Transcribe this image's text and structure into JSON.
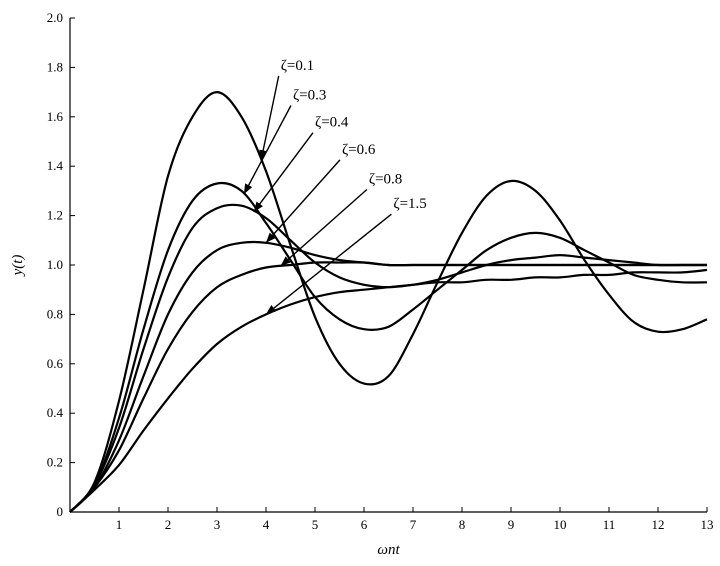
{
  "chart_data": {
    "type": "line",
    "xlabel": "ωnt",
    "ylabel": "y(t)",
    "xlim": [
      0,
      13
    ],
    "ylim": [
      0,
      2.0
    ],
    "x_ticks": [
      "1",
      "2",
      "3",
      "4",
      "5",
      "6",
      "7",
      "8",
      "9",
      "10",
      "11",
      "12",
      "13"
    ],
    "y_ticks": [
      "0",
      "0.2",
      "0.4",
      "0.6",
      "0.8",
      "1.0",
      "1.2",
      "1.4",
      "1.6",
      "1.8",
      "2.0"
    ],
    "grid": false,
    "series": [
      {
        "name": "ζ=0.1",
        "zeta": 0.1,
        "x": [
          0,
          0.5,
          1,
          1.5,
          2,
          2.5,
          3,
          3.5,
          4,
          4.5,
          5,
          5.5,
          6,
          6.5,
          7,
          7.5,
          8,
          8.5,
          9,
          9.5,
          10,
          10.5,
          11,
          11.5,
          12,
          12.5,
          13
        ],
        "y": [
          0,
          0.12,
          0.45,
          0.9,
          1.36,
          1.6,
          1.7,
          1.6,
          1.38,
          1.08,
          0.79,
          0.6,
          0.52,
          0.55,
          0.72,
          0.93,
          1.13,
          1.28,
          1.34,
          1.3,
          1.18,
          1.02,
          0.88,
          0.77,
          0.73,
          0.74,
          0.78
        ]
      },
      {
        "name": "ζ=0.3",
        "zeta": 0.3,
        "x": [
          0,
          0.5,
          1,
          1.5,
          2,
          2.5,
          3,
          3.5,
          4,
          4.5,
          5,
          5.5,
          6,
          6.5,
          7,
          7.5,
          8,
          8.5,
          9,
          9.5,
          10,
          10.5,
          11,
          11.5,
          12,
          12.5,
          13
        ],
        "y": [
          0,
          0.11,
          0.38,
          0.74,
          1.06,
          1.26,
          1.33,
          1.3,
          1.17,
          1.02,
          0.87,
          0.78,
          0.74,
          0.75,
          0.82,
          0.9,
          0.98,
          1.06,
          1.11,
          1.13,
          1.11,
          1.06,
          1.01,
          0.96,
          0.94,
          0.93,
          0.93
        ]
      },
      {
        "name": "ζ=0.4",
        "zeta": 0.4,
        "x": [
          0,
          0.5,
          1,
          1.5,
          2,
          2.5,
          3,
          3.5,
          4,
          4.5,
          5,
          5.5,
          6,
          6.5,
          7,
          7.5,
          8,
          8.5,
          9,
          9.5,
          10,
          10.5,
          11,
          11.5,
          12,
          12.5,
          13
        ],
        "y": [
          0,
          0.11,
          0.34,
          0.66,
          0.95,
          1.15,
          1.23,
          1.24,
          1.19,
          1.1,
          1.01,
          0.95,
          0.92,
          0.91,
          0.92,
          0.94,
          0.97,
          1.0,
          1.02,
          1.03,
          1.04,
          1.03,
          1.02,
          1.01,
          1.0,
          1.0,
          1.0
        ]
      },
      {
        "name": "ζ=0.6",
        "zeta": 0.6,
        "x": [
          0,
          0.5,
          1,
          1.5,
          2,
          2.5,
          3,
          3.5,
          4,
          4.5,
          5,
          5.5,
          6,
          6.5,
          7,
          7.5,
          8,
          8.5,
          9,
          9.5,
          10,
          10.5,
          11,
          11.5,
          12,
          12.5,
          13
        ],
        "y": [
          0,
          0.1,
          0.29,
          0.55,
          0.8,
          0.97,
          1.06,
          1.09,
          1.09,
          1.07,
          1.04,
          1.02,
          1.01,
          1.0,
          1.0,
          1.0,
          1.0,
          1.0,
          1.0,
          1.0,
          1.0,
          1.0,
          1.0,
          1.0,
          1.0,
          1.0,
          1.0
        ]
      },
      {
        "name": "ζ=0.8",
        "zeta": 0.8,
        "x": [
          0,
          0.5,
          1,
          1.5,
          2,
          2.5,
          3,
          3.5,
          4,
          4.5,
          5,
          5.5,
          6,
          6.5,
          7,
          7.5,
          8,
          8.5,
          9,
          9.5,
          10,
          10.5,
          11,
          11.5,
          12,
          12.5,
          13
        ],
        "y": [
          0,
          0.1,
          0.25,
          0.46,
          0.66,
          0.81,
          0.91,
          0.96,
          0.99,
          1.0,
          1.01,
          1.01,
          1.01,
          1.0,
          1.0,
          1.0,
          1.0,
          1.0,
          1.0,
          1.0,
          1.0,
          1.0,
          1.0,
          1.0,
          1.0,
          1.0,
          1.0
        ]
      },
      {
        "name": "ζ=1.5",
        "zeta": 1.5,
        "x": [
          0,
          0.5,
          1,
          1.5,
          2,
          2.5,
          3,
          3.5,
          4,
          4.5,
          5,
          5.5,
          6,
          6.5,
          7,
          7.5,
          8,
          8.5,
          9,
          9.5,
          10,
          10.5,
          11,
          11.5,
          12,
          12.5,
          13
        ],
        "y": [
          0,
          0.09,
          0.19,
          0.33,
          0.46,
          0.58,
          0.68,
          0.75,
          0.8,
          0.84,
          0.87,
          0.89,
          0.9,
          0.91,
          0.92,
          0.93,
          0.93,
          0.94,
          0.94,
          0.95,
          0.95,
          0.96,
          0.96,
          0.97,
          0.97,
          0.97,
          0.98
        ]
      }
    ],
    "annotations": [
      {
        "text": "ζ=0.1",
        "target_series": "ζ=0.1",
        "target_x": 3.9,
        "text_x": 4.3,
        "text_y": 1.79
      },
      {
        "text": "ζ=0.3",
        "target_series": "ζ=0.3",
        "target_x": 3.55,
        "text_x": 4.55,
        "text_y": 1.67
      },
      {
        "text": "ζ=0.4",
        "target_series": "ζ=0.4",
        "target_x": 3.75,
        "text_x": 5.0,
        "text_y": 1.56
      },
      {
        "text": "ζ=0.6",
        "target_series": "ζ=0.6",
        "target_x": 4.0,
        "text_x": 5.55,
        "text_y": 1.45
      },
      {
        "text": "ζ=0.8",
        "target_series": "ζ=0.8",
        "target_x": 4.3,
        "text_x": 6.1,
        "text_y": 1.33
      },
      {
        "text": "ζ=1.5",
        "target_series": "ζ=1.5",
        "target_x": 4.0,
        "text_x": 6.6,
        "text_y": 1.23
      }
    ],
    "colors": {
      "line": "#000000",
      "axis": "#000000",
      "background": "#ffffff"
    }
  }
}
